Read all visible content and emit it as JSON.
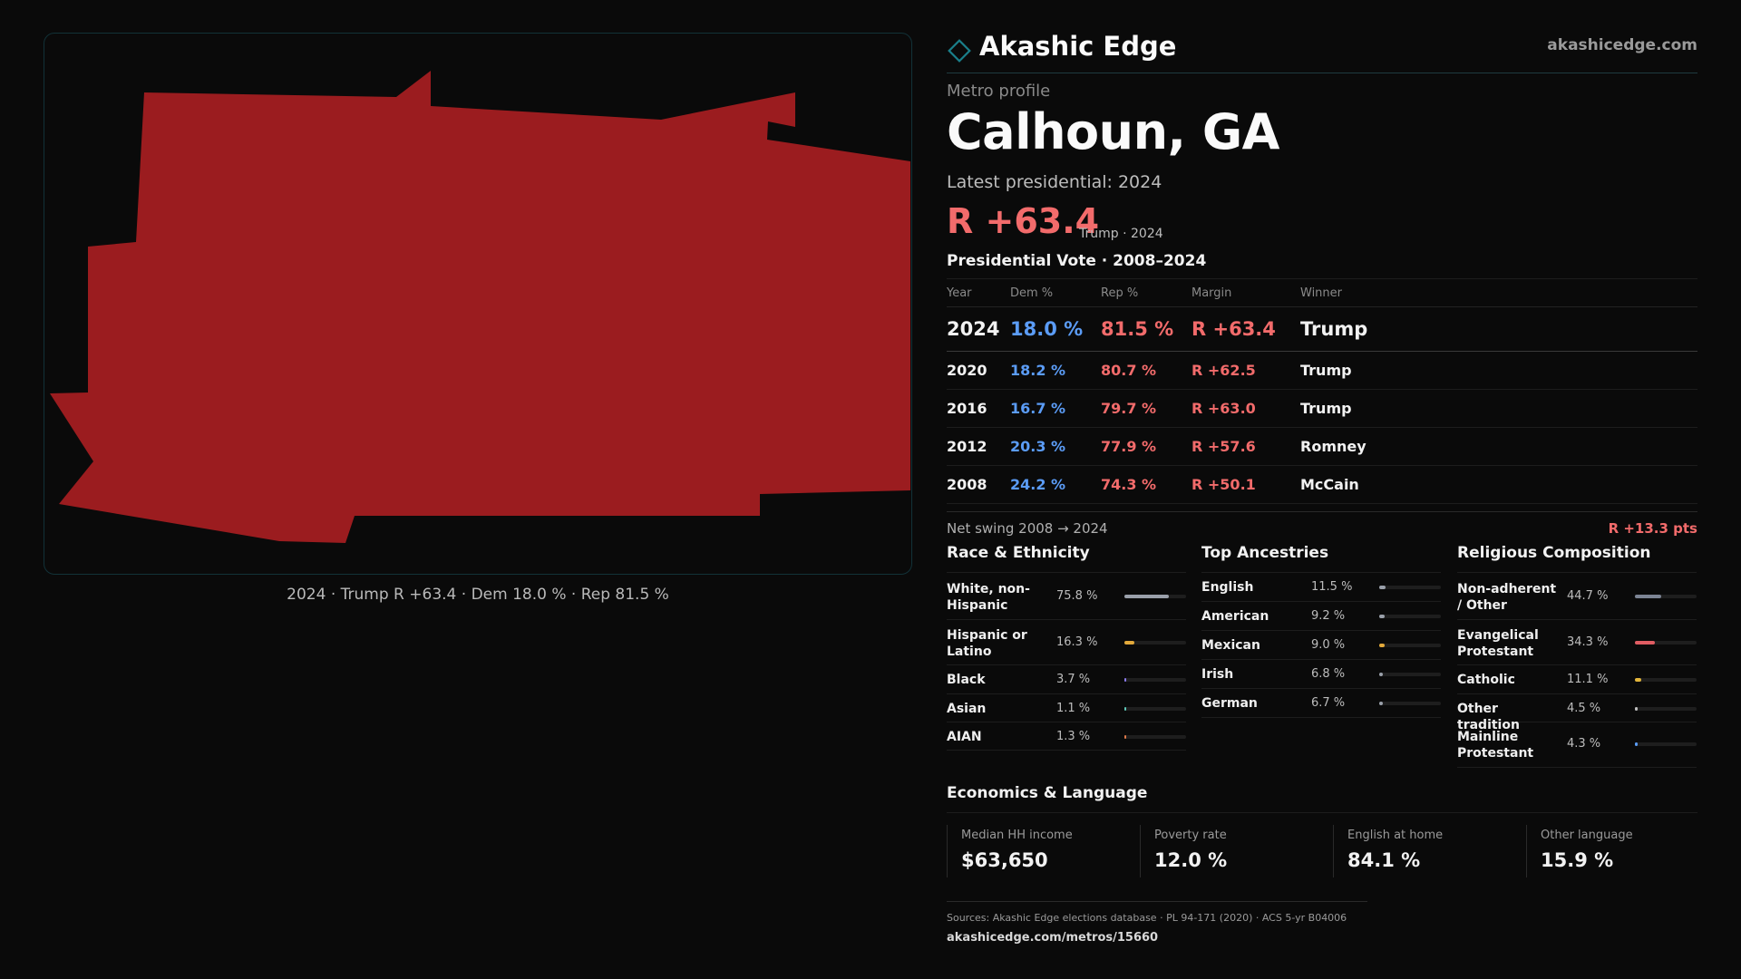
{
  "brand": {
    "name": "Akashic Edge",
    "url": "akashicedge.com",
    "accent": "#1a7f8a"
  },
  "map": {
    "fill_color": "#9b1c1f",
    "caption": "2024 · Trump R +63.4 · Dem 18.0 % · Rep 81.5 %"
  },
  "profile": {
    "eyebrow": "Metro profile",
    "place": "Calhoun, GA",
    "latest_label": "Latest presidential: 2024",
    "latest_margin": "R +63.4",
    "latest_sub": "Trump · 2024"
  },
  "vote_table": {
    "title": "Presidential Vote · 2008–2024",
    "headers": {
      "year": "Year",
      "dem": "Dem %",
      "rep": "Rep %",
      "margin": "Margin",
      "winner": "Winner"
    },
    "rows": [
      {
        "year": "2024",
        "dem": "18.0 %",
        "rep": "81.5 %",
        "margin": "R +63.4",
        "winner": "Trump"
      },
      {
        "year": "2020",
        "dem": "18.2 %",
        "rep": "80.7 %",
        "margin": "R +62.5",
        "winner": "Trump"
      },
      {
        "year": "2016",
        "dem": "16.7 %",
        "rep": "79.7 %",
        "margin": "R +63.0",
        "winner": "Trump"
      },
      {
        "year": "2012",
        "dem": "20.3 %",
        "rep": "77.9 %",
        "margin": "R +57.6",
        "winner": "Romney"
      },
      {
        "year": "2008",
        "dem": "24.2 %",
        "rep": "74.3 %",
        "margin": "R +50.1",
        "winner": "McCain"
      }
    ],
    "swing_label": "Net swing 2008 → 2024",
    "swing_value": "R +13.3 pts"
  },
  "race": {
    "title": "Race & Ethnicity",
    "items": [
      {
        "label": "White, non-Hispanic",
        "pct": "75.8 %",
        "fraction": 0.758,
        "color": "#9aa0aa"
      },
      {
        "label": "Hispanic or Latino",
        "pct": "16.3 %",
        "fraction": 0.163,
        "color": "#e2a93b"
      },
      {
        "label": "Black",
        "pct": "3.7 %",
        "fraction": 0.037,
        "color": "#8c7cf0"
      },
      {
        "label": "Asian",
        "pct": "1.1 %",
        "fraction": 0.011,
        "color": "#5fc9b9"
      },
      {
        "label": "AIAN",
        "pct": "1.3 %",
        "fraction": 0.013,
        "color": "#e07a4a"
      }
    ]
  },
  "ancestry": {
    "title": "Top Ancestries",
    "items": [
      {
        "label": "English",
        "pct": "11.5 %",
        "fraction": 0.115,
        "color": "#9aa0aa"
      },
      {
        "label": "American",
        "pct": "9.2 %",
        "fraction": 0.092,
        "color": "#9aa0aa"
      },
      {
        "label": "Mexican",
        "pct": "9.0 %",
        "fraction": 0.09,
        "color": "#e2a93b"
      },
      {
        "label": "Irish",
        "pct": "6.8 %",
        "fraction": 0.068,
        "color": "#9aa0aa"
      },
      {
        "label": "German",
        "pct": "6.7 %",
        "fraction": 0.067,
        "color": "#9aa0aa"
      }
    ]
  },
  "religion": {
    "title": "Religious Composition",
    "items": [
      {
        "label": "Non-adherent / Other",
        "pct": "44.7 %",
        "fraction": 0.447,
        "color": "#7c8494"
      },
      {
        "label": "Evangelical Protestant",
        "pct": "34.3 %",
        "fraction": 0.343,
        "color": "#e05d63"
      },
      {
        "label": "Catholic",
        "pct": "11.1 %",
        "fraction": 0.111,
        "color": "#e2b53b"
      },
      {
        "label": "Other tradition",
        "pct": "4.5 %",
        "fraction": 0.045,
        "color": "#bfbfbf"
      },
      {
        "label": "Mainline Protestant",
        "pct": "4.3 %",
        "fraction": 0.043,
        "color": "#5b9cf6"
      }
    ]
  },
  "economics": {
    "title": "Economics & Language",
    "cells": [
      {
        "label": "Median HH income",
        "value": "$63,650"
      },
      {
        "label": "Poverty rate",
        "value": "12.0 %"
      },
      {
        "label": "English at home",
        "value": "84.1 %"
      },
      {
        "label": "Other language",
        "value": "15.9 %"
      }
    ]
  },
  "footer": {
    "sources": "Sources: Akashic Edge elections database · PL 94-171 (2020) · ACS 5-yr B04006",
    "link": "akashicedge.com/metros/15660"
  }
}
